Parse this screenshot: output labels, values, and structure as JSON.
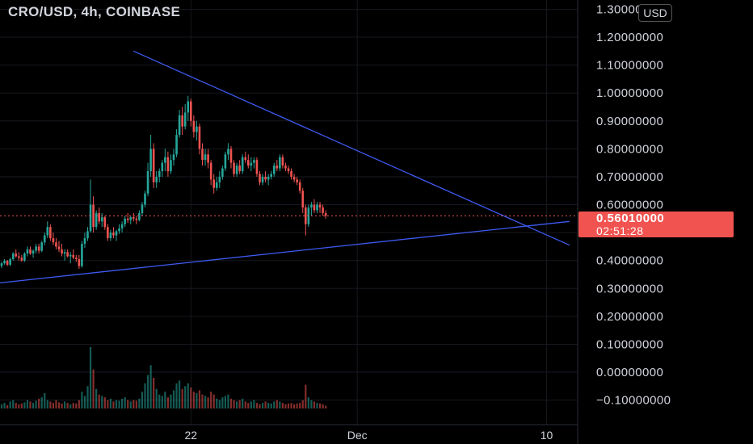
{
  "header": {
    "title": "CRO/USD, 4h, COINBASE",
    "currency": "USD"
  },
  "price_tag": {
    "price": "0.56010000",
    "countdown": "02:51:28"
  },
  "colors": {
    "up": "#26a69a",
    "down": "#ef5350",
    "trendline": "#3d5af1",
    "background": "#000000",
    "tag": "#f05350"
  },
  "chart_data": {
    "type": "candlestick",
    "title": "CRO/USD, 4h, COINBASE",
    "xlabel": "",
    "ylabel": "",
    "ylim": [
      -0.13,
      1.31
    ],
    "grid": true,
    "y_ticks": [
      "1.30000000",
      "1.20000000",
      "1.10000000",
      "1.00000000",
      "0.90000000",
      "0.80000000",
      "0.70000000",
      "0.60000000",
      "0.50000000",
      "0.40000000",
      "0.30000000",
      "0.20000000",
      "0.10000000",
      "0.00000000",
      "−0.10000000"
    ],
    "y_tick_values": [
      1.3,
      1.2,
      1.1,
      1.0,
      0.9,
      0.8,
      0.7,
      0.6,
      0.5,
      0.4,
      0.3,
      0.2,
      0.1,
      0.0,
      -0.1
    ],
    "x_ticks": [
      "22",
      "Dec",
      "10"
    ],
    "x_tick_index": [
      66,
      124,
      190
    ],
    "last_price": 0.5601,
    "ohlc": [
      [
        0.38,
        0.396,
        0.373,
        0.39
      ],
      [
        0.39,
        0.405,
        0.385,
        0.399
      ],
      [
        0.399,
        0.402,
        0.38,
        0.385
      ],
      [
        0.385,
        0.41,
        0.38,
        0.405
      ],
      [
        0.405,
        0.43,
        0.4,
        0.425
      ],
      [
        0.425,
        0.44,
        0.41,
        0.415
      ],
      [
        0.415,
        0.43,
        0.4,
        0.41
      ],
      [
        0.41,
        0.42,
        0.395,
        0.4
      ],
      [
        0.4,
        0.43,
        0.395,
        0.425
      ],
      [
        0.425,
        0.45,
        0.415,
        0.44
      ],
      [
        0.44,
        0.45,
        0.42,
        0.425
      ],
      [
        0.425,
        0.44,
        0.41,
        0.435
      ],
      [
        0.435,
        0.46,
        0.425,
        0.45
      ],
      [
        0.45,
        0.46,
        0.425,
        0.435
      ],
      [
        0.435,
        0.47,
        0.43,
        0.465
      ],
      [
        0.465,
        0.5,
        0.455,
        0.49
      ],
      [
        0.49,
        0.54,
        0.48,
        0.52
      ],
      [
        0.52,
        0.53,
        0.47,
        0.48
      ],
      [
        0.48,
        0.5,
        0.455,
        0.465
      ],
      [
        0.465,
        0.48,
        0.44,
        0.45
      ],
      [
        0.45,
        0.47,
        0.43,
        0.44
      ],
      [
        0.44,
        0.46,
        0.415,
        0.425
      ],
      [
        0.425,
        0.44,
        0.4,
        0.43
      ],
      [
        0.43,
        0.44,
        0.41,
        0.415
      ],
      [
        0.415,
        0.43,
        0.39,
        0.42
      ],
      [
        0.42,
        0.44,
        0.405,
        0.41
      ],
      [
        0.41,
        0.42,
        0.395,
        0.405
      ],
      [
        0.405,
        0.42,
        0.37,
        0.38
      ],
      [
        0.38,
        0.47,
        0.375,
        0.46
      ],
      [
        0.46,
        0.5,
        0.445,
        0.48
      ],
      [
        0.48,
        0.52,
        0.47,
        0.505
      ],
      [
        0.505,
        0.69,
        0.5,
        0.6
      ],
      [
        0.6,
        0.63,
        0.5,
        0.52
      ],
      [
        0.52,
        0.58,
        0.51,
        0.57
      ],
      [
        0.57,
        0.59,
        0.53,
        0.54
      ],
      [
        0.54,
        0.57,
        0.52,
        0.555
      ],
      [
        0.555,
        0.56,
        0.51,
        0.52
      ],
      [
        0.52,
        0.53,
        0.47,
        0.48
      ],
      [
        0.48,
        0.51,
        0.47,
        0.5
      ],
      [
        0.5,
        0.52,
        0.48,
        0.49
      ],
      [
        0.49,
        0.51,
        0.47,
        0.505
      ],
      [
        0.505,
        0.53,
        0.495,
        0.515
      ],
      [
        0.515,
        0.54,
        0.5,
        0.53
      ],
      [
        0.53,
        0.56,
        0.52,
        0.55
      ],
      [
        0.55,
        0.57,
        0.535,
        0.545
      ],
      [
        0.545,
        0.56,
        0.53,
        0.555
      ],
      [
        0.555,
        0.57,
        0.54,
        0.55
      ],
      [
        0.55,
        0.56,
        0.53,
        0.545
      ],
      [
        0.545,
        0.58,
        0.54,
        0.57
      ],
      [
        0.57,
        0.61,
        0.56,
        0.6
      ],
      [
        0.6,
        0.65,
        0.59,
        0.64
      ],
      [
        0.64,
        0.75,
        0.63,
        0.72
      ],
      [
        0.72,
        0.85,
        0.7,
        0.8
      ],
      [
        0.8,
        0.82,
        0.66,
        0.68
      ],
      [
        0.68,
        0.72,
        0.66,
        0.7
      ],
      [
        0.7,
        0.73,
        0.68,
        0.72
      ],
      [
        0.72,
        0.76,
        0.7,
        0.75
      ],
      [
        0.75,
        0.8,
        0.72,
        0.77
      ],
      [
        0.77,
        0.79,
        0.7,
        0.72
      ],
      [
        0.72,
        0.78,
        0.71,
        0.76
      ],
      [
        0.76,
        0.8,
        0.74,
        0.78
      ],
      [
        0.78,
        0.87,
        0.77,
        0.85
      ],
      [
        0.85,
        0.94,
        0.84,
        0.92
      ],
      [
        0.92,
        0.95,
        0.85,
        0.88
      ],
      [
        0.88,
        0.96,
        0.87,
        0.93
      ],
      [
        0.93,
        0.99,
        0.9,
        0.97
      ],
      [
        0.97,
        0.98,
        0.88,
        0.9
      ],
      [
        0.9,
        0.92,
        0.84,
        0.86
      ],
      [
        0.86,
        0.9,
        0.83,
        0.88
      ],
      [
        0.88,
        0.89,
        0.78,
        0.8
      ],
      [
        0.8,
        0.82,
        0.74,
        0.76
      ],
      [
        0.76,
        0.8,
        0.74,
        0.78
      ],
      [
        0.78,
        0.8,
        0.73,
        0.75
      ],
      [
        0.75,
        0.76,
        0.67,
        0.69
      ],
      [
        0.69,
        0.71,
        0.64,
        0.66
      ],
      [
        0.66,
        0.7,
        0.65,
        0.68
      ],
      [
        0.68,
        0.72,
        0.66,
        0.7
      ],
      [
        0.7,
        0.74,
        0.69,
        0.73
      ],
      [
        0.73,
        0.79,
        0.72,
        0.78
      ],
      [
        0.78,
        0.82,
        0.76,
        0.8
      ],
      [
        0.8,
        0.81,
        0.73,
        0.75
      ],
      [
        0.75,
        0.76,
        0.7,
        0.71
      ],
      [
        0.71,
        0.75,
        0.7,
        0.74
      ],
      [
        0.74,
        0.76,
        0.71,
        0.72
      ],
      [
        0.72,
        0.78,
        0.71,
        0.77
      ],
      [
        0.77,
        0.79,
        0.75,
        0.76
      ],
      [
        0.76,
        0.78,
        0.73,
        0.74
      ],
      [
        0.74,
        0.77,
        0.72,
        0.75
      ],
      [
        0.75,
        0.77,
        0.73,
        0.76
      ],
      [
        0.76,
        0.77,
        0.7,
        0.71
      ],
      [
        0.71,
        0.72,
        0.67,
        0.68
      ],
      [
        0.68,
        0.71,
        0.67,
        0.7
      ],
      [
        0.7,
        0.72,
        0.68,
        0.69
      ],
      [
        0.69,
        0.71,
        0.67,
        0.7
      ],
      [
        0.7,
        0.72,
        0.69,
        0.71
      ],
      [
        0.71,
        0.75,
        0.7,
        0.74
      ],
      [
        0.74,
        0.76,
        0.72,
        0.73
      ],
      [
        0.73,
        0.78,
        0.72,
        0.77
      ],
      [
        0.77,
        0.78,
        0.73,
        0.74
      ],
      [
        0.74,
        0.75,
        0.72,
        0.73
      ],
      [
        0.73,
        0.74,
        0.71,
        0.72
      ],
      [
        0.72,
        0.73,
        0.69,
        0.7
      ],
      [
        0.7,
        0.71,
        0.68,
        0.69
      ],
      [
        0.69,
        0.7,
        0.67,
        0.68
      ],
      [
        0.68,
        0.69,
        0.64,
        0.65
      ],
      [
        0.65,
        0.66,
        0.57,
        0.59
      ],
      [
        0.59,
        0.6,
        0.49,
        0.53
      ],
      [
        0.53,
        0.6,
        0.52,
        0.59
      ],
      [
        0.59,
        0.61,
        0.56,
        0.6
      ],
      [
        0.6,
        0.62,
        0.57,
        0.58
      ],
      [
        0.58,
        0.61,
        0.57,
        0.6
      ],
      [
        0.6,
        0.61,
        0.57,
        0.59
      ],
      [
        0.59,
        0.6,
        0.56,
        0.57
      ],
      [
        0.57,
        0.58,
        0.55,
        0.56
      ]
    ],
    "volume": [
      0.015,
      0.02,
      0.012,
      0.025,
      0.03,
      0.02,
      0.015,
      0.018,
      0.022,
      0.03,
      0.025,
      0.02,
      0.028,
      0.035,
      0.04,
      0.055,
      0.03,
      0.025,
      0.02,
      0.03,
      0.022,
      0.018,
      0.025,
      0.02,
      0.015,
      0.02,
      0.018,
      0.03,
      0.06,
      0.045,
      0.08,
      0.22,
      0.14,
      0.07,
      0.05,
      0.045,
      0.04,
      0.03,
      0.035,
      0.025,
      0.03,
      0.028,
      0.035,
      0.04,
      0.03,
      0.025,
      0.03,
      0.028,
      0.035,
      0.06,
      0.09,
      0.12,
      0.155,
      0.11,
      0.07,
      0.05,
      0.045,
      0.06,
      0.04,
      0.05,
      0.065,
      0.09,
      0.1,
      0.07,
      0.08,
      0.09,
      0.075,
      0.06,
      0.055,
      0.065,
      0.05,
      0.045,
      0.04,
      0.06,
      0.05,
      0.035,
      0.03,
      0.04,
      0.045,
      0.05,
      0.035,
      0.03,
      0.025,
      0.03,
      0.035,
      0.025,
      0.02,
      0.025,
      0.03,
      0.02,
      0.015,
      0.02,
      0.025,
      0.02,
      0.018,
      0.025,
      0.03,
      0.025,
      0.02,
      0.015,
      0.018,
      0.02,
      0.015,
      0.018,
      0.02,
      0.03,
      0.085,
      0.04,
      0.03,
      0.025,
      0.02,
      0.018,
      0.015,
      0.01
    ],
    "trendlines": [
      {
        "name": "",
        "from": [
          46,
          1.15
        ],
        "to": [
          198,
          0.455
        ]
      },
      {
        "name": "",
        "from": [
          0,
          0.32
        ],
        "to": [
          198,
          0.54
        ]
      }
    ]
  }
}
